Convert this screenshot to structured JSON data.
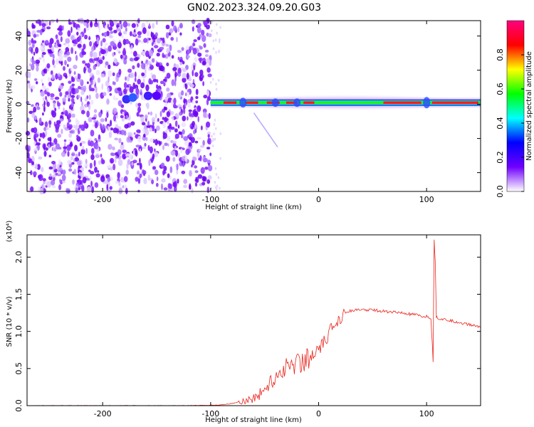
{
  "title": "GN02.2023.324.09.20.G03",
  "charts": [
    {
      "type": "heatmap",
      "xlabel": "Height of straight line (km)",
      "ylabel": "Frequency (Hz)",
      "xlim": [
        -270,
        150
      ],
      "ylim": [
        -51,
        49
      ],
      "xticks": [
        -200,
        -100,
        0,
        100
      ],
      "xtick_labels": [
        "-200",
        "-100",
        "0",
        "100"
      ],
      "yticks": [
        -40,
        -20,
        0,
        20,
        40
      ],
      "ytick_labels": [
        "-40",
        "-20",
        "0",
        "20",
        "40"
      ],
      "colorbar": {
        "label": "Normalized spectral amplitude",
        "range": [
          0,
          1
        ],
        "ticks": [
          0.0,
          0.2,
          0.4,
          0.6,
          0.8
        ],
        "tick_labels": [
          "0.0",
          "0.2",
          "0.4",
          "0.6",
          "0.8"
        ],
        "colors": [
          "#ffffff",
          "#7000ff",
          "#0000ff",
          "#00ffff",
          "#00ff00",
          "#ffff00",
          "#ff0000",
          "#ff0080"
        ]
      },
      "signal_band": {
        "x_start": -100,
        "x_end": 150,
        "center_frequency_hz": 1,
        "noise_region_x": [
          -270,
          -100
        ]
      }
    },
    {
      "type": "line",
      "xlabel": "Height of straight line (km)",
      "ylabel": "SNR (10 * v/v)",
      "y_multiplier": "(x10⁴)",
      "xlim": [
        -270,
        150
      ],
      "ylim": [
        0,
        2.3
      ],
      "xticks": [
        -200,
        -100,
        0,
        100
      ],
      "xtick_labels": [
        "-200",
        "-100",
        "0",
        "100"
      ],
      "yticks": [
        0.0,
        0.5,
        1.0,
        1.5,
        2.0
      ],
      "ytick_labels": [
        "0.0",
        "0.5",
        "1.0",
        "1.5",
        "2.0"
      ],
      "series": [
        {
          "color": "#e8241c",
          "x": [
            -270,
            -200,
            -120,
            -90,
            -80,
            -70,
            -60,
            -55,
            -50,
            -45,
            -40,
            -35,
            -30,
            -25,
            -20,
            -15,
            -10,
            -5,
            0,
            5,
            10,
            15,
            20,
            25,
            30,
            40,
            50,
            60,
            70,
            80,
            90,
            95,
            100,
            104,
            106,
            107,
            108,
            109,
            110,
            115,
            120,
            130,
            140,
            150
          ],
          "y": [
            0.0,
            0.0,
            0.0,
            0.01,
            0.03,
            0.06,
            0.1,
            0.15,
            0.22,
            0.3,
            0.38,
            0.46,
            0.52,
            0.56,
            0.58,
            0.6,
            0.63,
            0.67,
            0.72,
            0.84,
            0.98,
            1.1,
            1.2,
            1.26,
            1.28,
            1.29,
            1.29,
            1.27,
            1.26,
            1.24,
            1.22,
            1.2,
            1.2,
            1.18,
            0.6,
            2.25,
            1.95,
            1.2,
            1.18,
            1.16,
            1.15,
            1.12,
            1.09,
            1.06
          ]
        }
      ]
    }
  ]
}
